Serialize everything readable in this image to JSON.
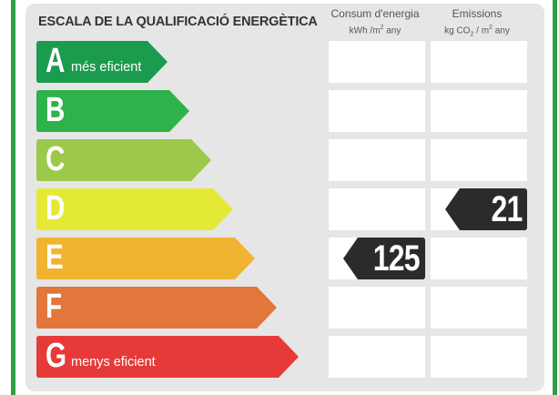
{
  "title": "ESCALA DE LA QUALIFICACIÓ ENERGÈTICA",
  "columns": {
    "energy": {
      "label": "Consum d'energia",
      "unit_prefix": "kWh /m",
      "unit_exp": "2",
      "unit_suffix": " any"
    },
    "emissions": {
      "label": "Emissions",
      "unit_prefix": "kg CO",
      "unit_sub": "2",
      "unit_mid": " / m",
      "unit_exp": "2",
      "unit_suffix": " any"
    }
  },
  "classes": [
    {
      "letter": "A",
      "sublabel": "més eficient",
      "color": "#1b9b4d"
    },
    {
      "letter": "B",
      "sublabel": "",
      "color": "#2db34a"
    },
    {
      "letter": "C",
      "sublabel": "",
      "color": "#9dc94a"
    },
    {
      "letter": "D",
      "sublabel": "",
      "color": "#e4e936"
    },
    {
      "letter": "E",
      "sublabel": "",
      "color": "#f0b431"
    },
    {
      "letter": "F",
      "sublabel": "",
      "color": "#e3763a"
    },
    {
      "letter": "G",
      "sublabel": "menys eficient",
      "color": "#e63a3a"
    }
  ],
  "rating": {
    "energy_value": "125",
    "energy_class": "E",
    "emissions_value": "21",
    "emissions_class": "D",
    "marker_color": "#2b2b2b"
  }
}
